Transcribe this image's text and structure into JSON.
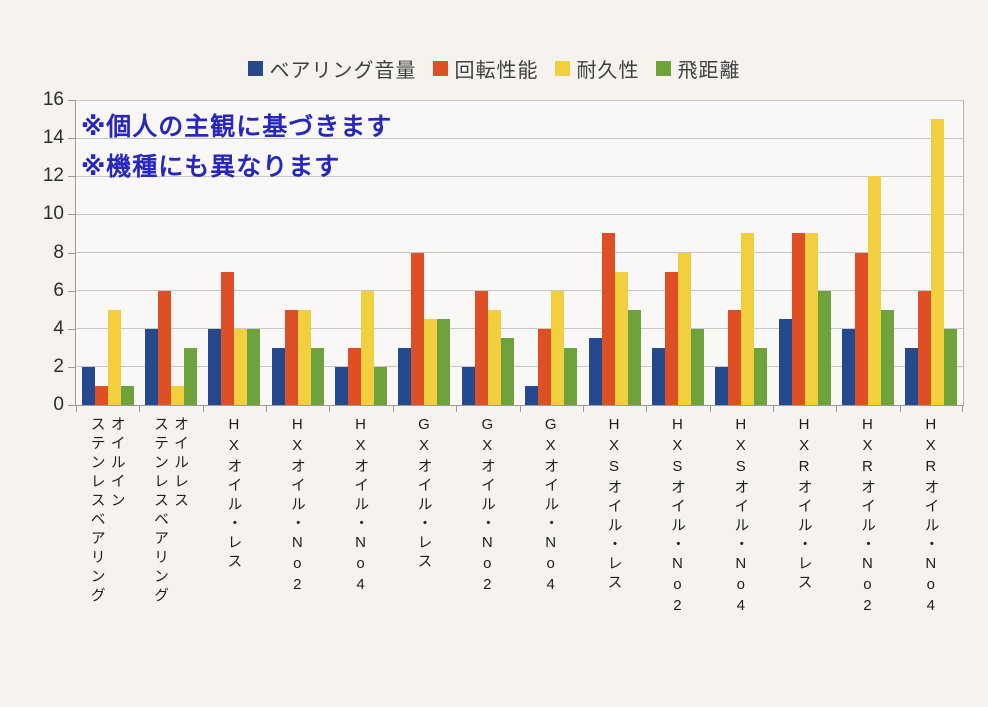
{
  "chart_data": {
    "type": "bar",
    "title": "",
    "xlabel": "",
    "ylabel": "",
    "ylim": [
      0,
      16
    ],
    "yticks": [
      0,
      2,
      4,
      6,
      8,
      10,
      12,
      14,
      16
    ],
    "grid": true,
    "legend_position": "top",
    "annotations": [
      "※個人の主観に基づきます",
      "※機種にも異なります"
    ],
    "annotation_color": "#2727bd",
    "categories": [
      "オイルイン\nステンレスベアリング",
      "オイルレス\nステンレスベアリング",
      "HXオイル・レス",
      "HXオイル・No2",
      "HXオイル・No4",
      "GXオイル・レス",
      "GXオイル・No2",
      "GXオイル・No4",
      "HXSオイル・レス",
      "HXSオイル・No2",
      "HXSオイル・No4",
      "HXRオイル・レス",
      "HXRオイル・No2",
      "HXRオイル・No4"
    ],
    "series": [
      {
        "name": "ベアリング音量",
        "color": "#24498d",
        "values": [
          2,
          4,
          4,
          3,
          2,
          3,
          2,
          1,
          3.5,
          3,
          2,
          4.5,
          4,
          3
        ]
      },
      {
        "name": "回転性能",
        "color": "#df4f26",
        "values": [
          1,
          6,
          7,
          5,
          3,
          8,
          6,
          4,
          9,
          7,
          5,
          9,
          8,
          6
        ]
      },
      {
        "name": "耐久性",
        "color": "#f2cf3e",
        "values": [
          5,
          1,
          4,
          5,
          6,
          4.5,
          5,
          6,
          7,
          8,
          9,
          9,
          12,
          15
        ]
      },
      {
        "name": "飛距離",
        "color": "#6ea33c",
        "values": [
          1,
          3,
          4,
          3,
          2,
          4.5,
          3.5,
          3,
          5,
          4,
          3,
          6,
          5,
          4
        ]
      }
    ]
  }
}
